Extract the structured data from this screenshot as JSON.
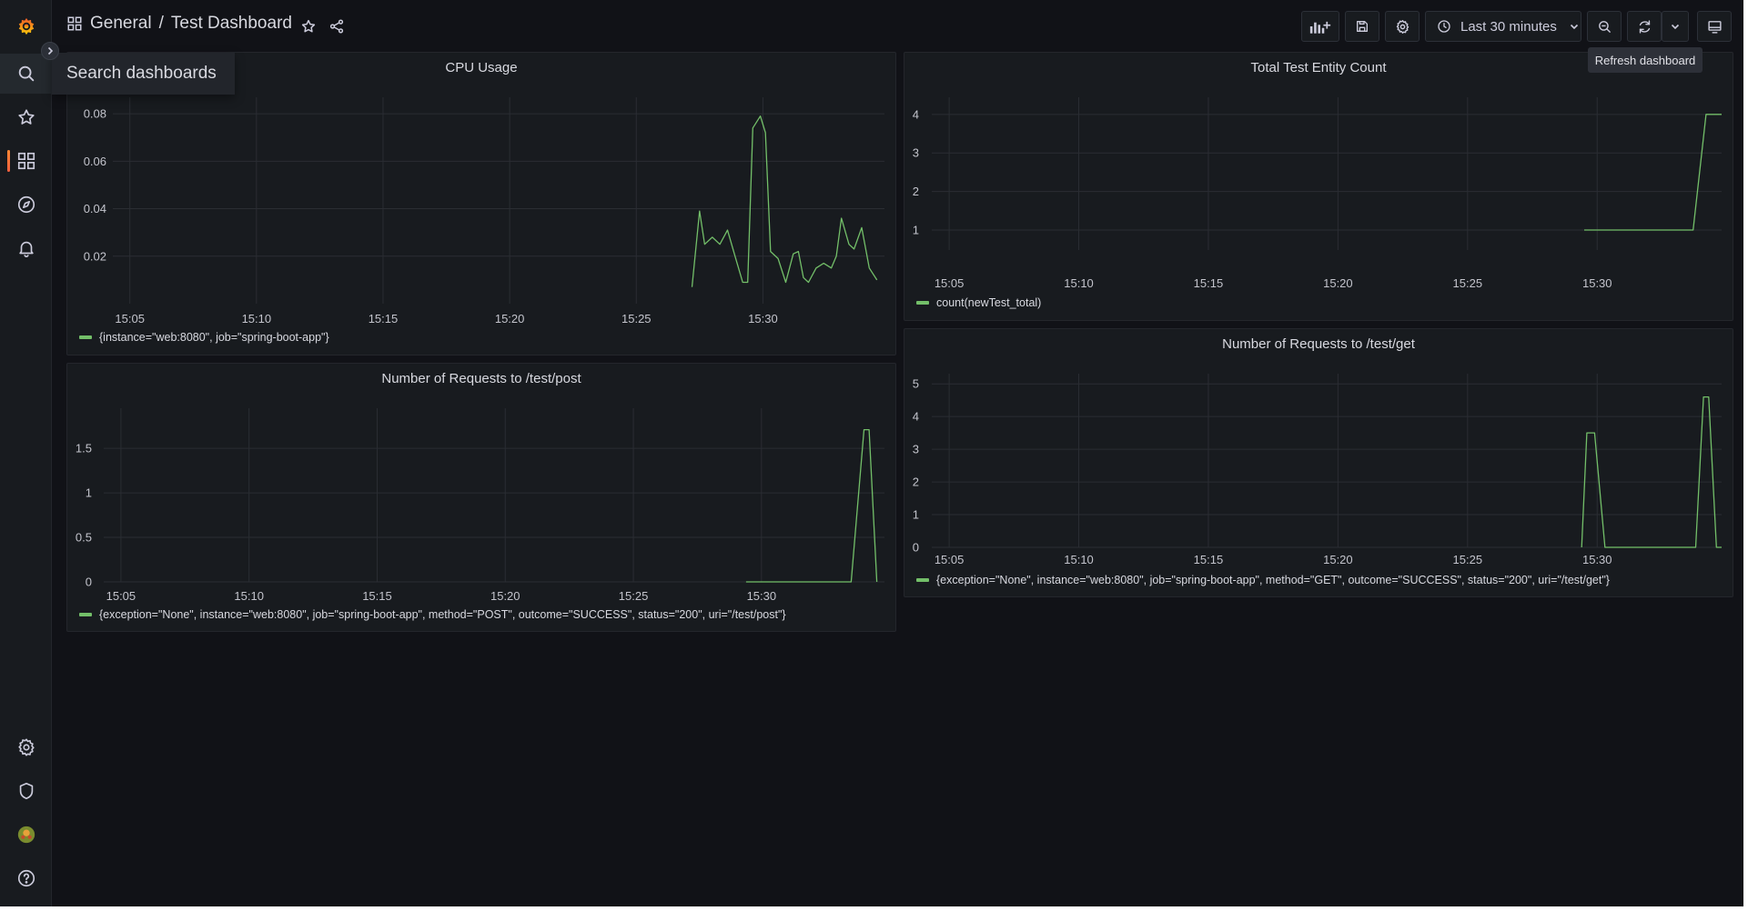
{
  "nav": {
    "breadcrumb_folder": "General",
    "breadcrumb_separator": "/",
    "breadcrumb_dashboard": "Test Dashboard",
    "time_range": "Last 30 minutes",
    "refresh_tooltip": "Refresh dashboard",
    "search_flyout": "Search dashboards"
  },
  "sidebar": {
    "items": [
      {
        "icon": "search-icon"
      },
      {
        "icon": "star-icon"
      },
      {
        "icon": "dashboards-icon",
        "active": true
      },
      {
        "icon": "compass-icon"
      },
      {
        "icon": "bell-icon"
      },
      {
        "icon": "gear-icon"
      },
      {
        "icon": "shield-icon"
      },
      {
        "icon": "avatar"
      },
      {
        "icon": "help-icon"
      }
    ]
  },
  "colors": {
    "series": "#73bf69",
    "accent": "#f55f3e",
    "background": "#111217",
    "panel": "#181b1f"
  },
  "panels": [
    {
      "title": "CPU Usage",
      "legend": "{instance=\"web:8080\", job=\"spring-boot-app\"}"
    },
    {
      "title": "Total Test Entity Count",
      "legend": "count(newTest_total)"
    },
    {
      "title": "Number of Requests to /test/post",
      "legend": "{exception=\"None\", instance=\"web:8080\", job=\"spring-boot-app\", method=\"POST\", outcome=\"SUCCESS\", status=\"200\", uri=\"/test/post\"}"
    },
    {
      "title": "Number of Requests to /test/get",
      "legend": "{exception=\"None\", instance=\"web:8080\", job=\"spring-boot-app\", method=\"GET\", outcome=\"SUCCESS\", status=\"200\", uri=\"/test/get\"}"
    }
  ],
  "chart_data": [
    {
      "type": "line",
      "title": "CPU Usage",
      "x_unit": "minutes",
      "x_ticks": [
        "15:05",
        "15:10",
        "15:15",
        "15:20",
        "15:25",
        "15:30"
      ],
      "y_ticks": [
        "0.02",
        "0.04",
        "0.06",
        "0.08"
      ],
      "xlim": [
        4.4,
        34.8
      ],
      "ylim": [
        0.0,
        0.0854
      ],
      "grid": true,
      "series": [
        {
          "name": "{instance=\"web:8080\", job=\"spring-boot-app\"}",
          "x": [
            27.2,
            27.5,
            27.7,
            28.0,
            28.3,
            28.6,
            28.9,
            29.2,
            29.4,
            29.6,
            29.9,
            30.1,
            30.3,
            30.6,
            30.9,
            31.2,
            31.4,
            31.6,
            31.8,
            32.1,
            32.4,
            32.7,
            32.9,
            33.1,
            33.4,
            33.6,
            33.9,
            34.2,
            34.5
          ],
          "y": [
            0.007,
            0.039,
            0.025,
            0.028,
            0.025,
            0.031,
            0.02,
            0.009,
            0.009,
            0.074,
            0.079,
            0.072,
            0.022,
            0.019,
            0.009,
            0.021,
            0.022,
            0.011,
            0.009,
            0.015,
            0.017,
            0.015,
            0.02,
            0.036,
            0.025,
            0.023,
            0.032,
            0.015,
            0.01
          ]
        }
      ]
    },
    {
      "type": "line",
      "title": "Total Test Entity Count",
      "x_unit": "minutes",
      "x_ticks": [
        "15:05",
        "15:10",
        "15:15",
        "15:20",
        "15:25",
        "15:30"
      ],
      "y_ticks": [
        "1",
        "2",
        "3",
        "4"
      ],
      "xlim": [
        4.4,
        34.8
      ],
      "ylim": [
        0.48,
        4.35
      ],
      "grid": true,
      "series": [
        {
          "name": "count(newTest_total)",
          "x": [
            29.5,
            33.7,
            34.2,
            34.8
          ],
          "y": [
            1,
            1,
            4,
            4
          ]
        }
      ]
    },
    {
      "type": "line",
      "title": "Number of Requests to /test/post",
      "x_unit": "minutes",
      "x_ticks": [
        "15:05",
        "15:10",
        "15:15",
        "15:20",
        "15:25",
        "15:30"
      ],
      "y_ticks": [
        "0",
        "0.5",
        "1",
        "1.5"
      ],
      "xlim": [
        4.4,
        34.8
      ],
      "ylim": [
        0,
        1.91
      ],
      "grid": true,
      "series": [
        {
          "name": "{exception=\"None\", instance=\"web:8080\", job=\"spring-boot-app\", method=\"POST\", outcome=\"SUCCESS\", status=\"200\", uri=\"/test/post\"}",
          "x": [
            29.4,
            33.5,
            34.0,
            34.2,
            34.5
          ],
          "y": [
            0,
            0,
            1.71,
            1.71,
            0
          ]
        }
      ]
    },
    {
      "type": "line",
      "title": "Number of Requests to /test/get",
      "x_unit": "minutes",
      "x_ticks": [
        "15:05",
        "15:10",
        "15:15",
        "15:20",
        "15:25",
        "15:30"
      ],
      "y_ticks": [
        "0",
        "1",
        "2",
        "3",
        "4",
        "5"
      ],
      "xlim": [
        4.4,
        34.8
      ],
      "ylim": [
        0,
        5.2
      ],
      "grid": true,
      "series": [
        {
          "name": "{exception=\"None\", instance=\"web:8080\", job=\"spring-boot-app\", method=\"GET\", outcome=\"SUCCESS\", status=\"200\", uri=\"/test/get\"}",
          "x": [
            29.4,
            29.6,
            29.9,
            30.3,
            33.8,
            34.1,
            34.3,
            34.6,
            34.8
          ],
          "y": [
            0,
            3.5,
            3.5,
            0,
            0,
            4.6,
            4.6,
            0,
            0
          ]
        }
      ]
    }
  ]
}
